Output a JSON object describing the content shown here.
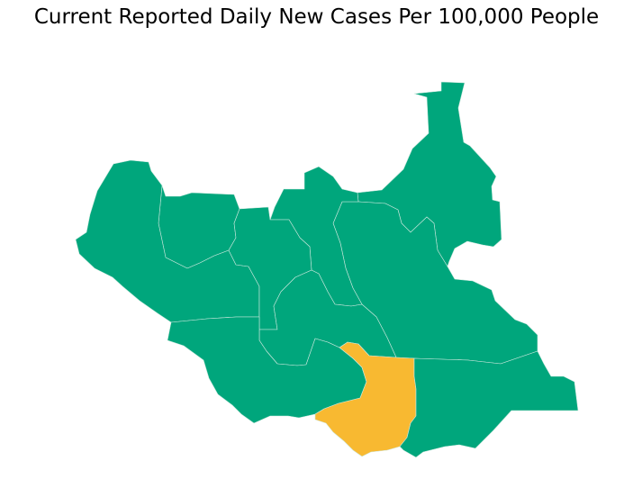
{
  "title": "Current Reported Daily New Cases Per 100,000 People",
  "colors": {
    "default_region": "#00a67c",
    "highlight_region": "#f8b931",
    "border": "#cfe9df",
    "background": "#ffffff"
  },
  "regions": [
    {
      "id": "upper-nile",
      "fill": "default_region"
    },
    {
      "id": "jonglei",
      "fill": "default_region"
    },
    {
      "id": "unity",
      "fill": "default_region"
    },
    {
      "id": "northern-bahr-el-ghazal",
      "fill": "default_region"
    },
    {
      "id": "western-bahr-el-ghazal",
      "fill": "default_region"
    },
    {
      "id": "warrap",
      "fill": "default_region"
    },
    {
      "id": "lakes",
      "fill": "default_region"
    },
    {
      "id": "western-equatoria",
      "fill": "default_region"
    },
    {
      "id": "central-equatoria",
      "fill": "highlight_region"
    },
    {
      "id": "eastern-equatoria",
      "fill": "default_region"
    }
  ]
}
